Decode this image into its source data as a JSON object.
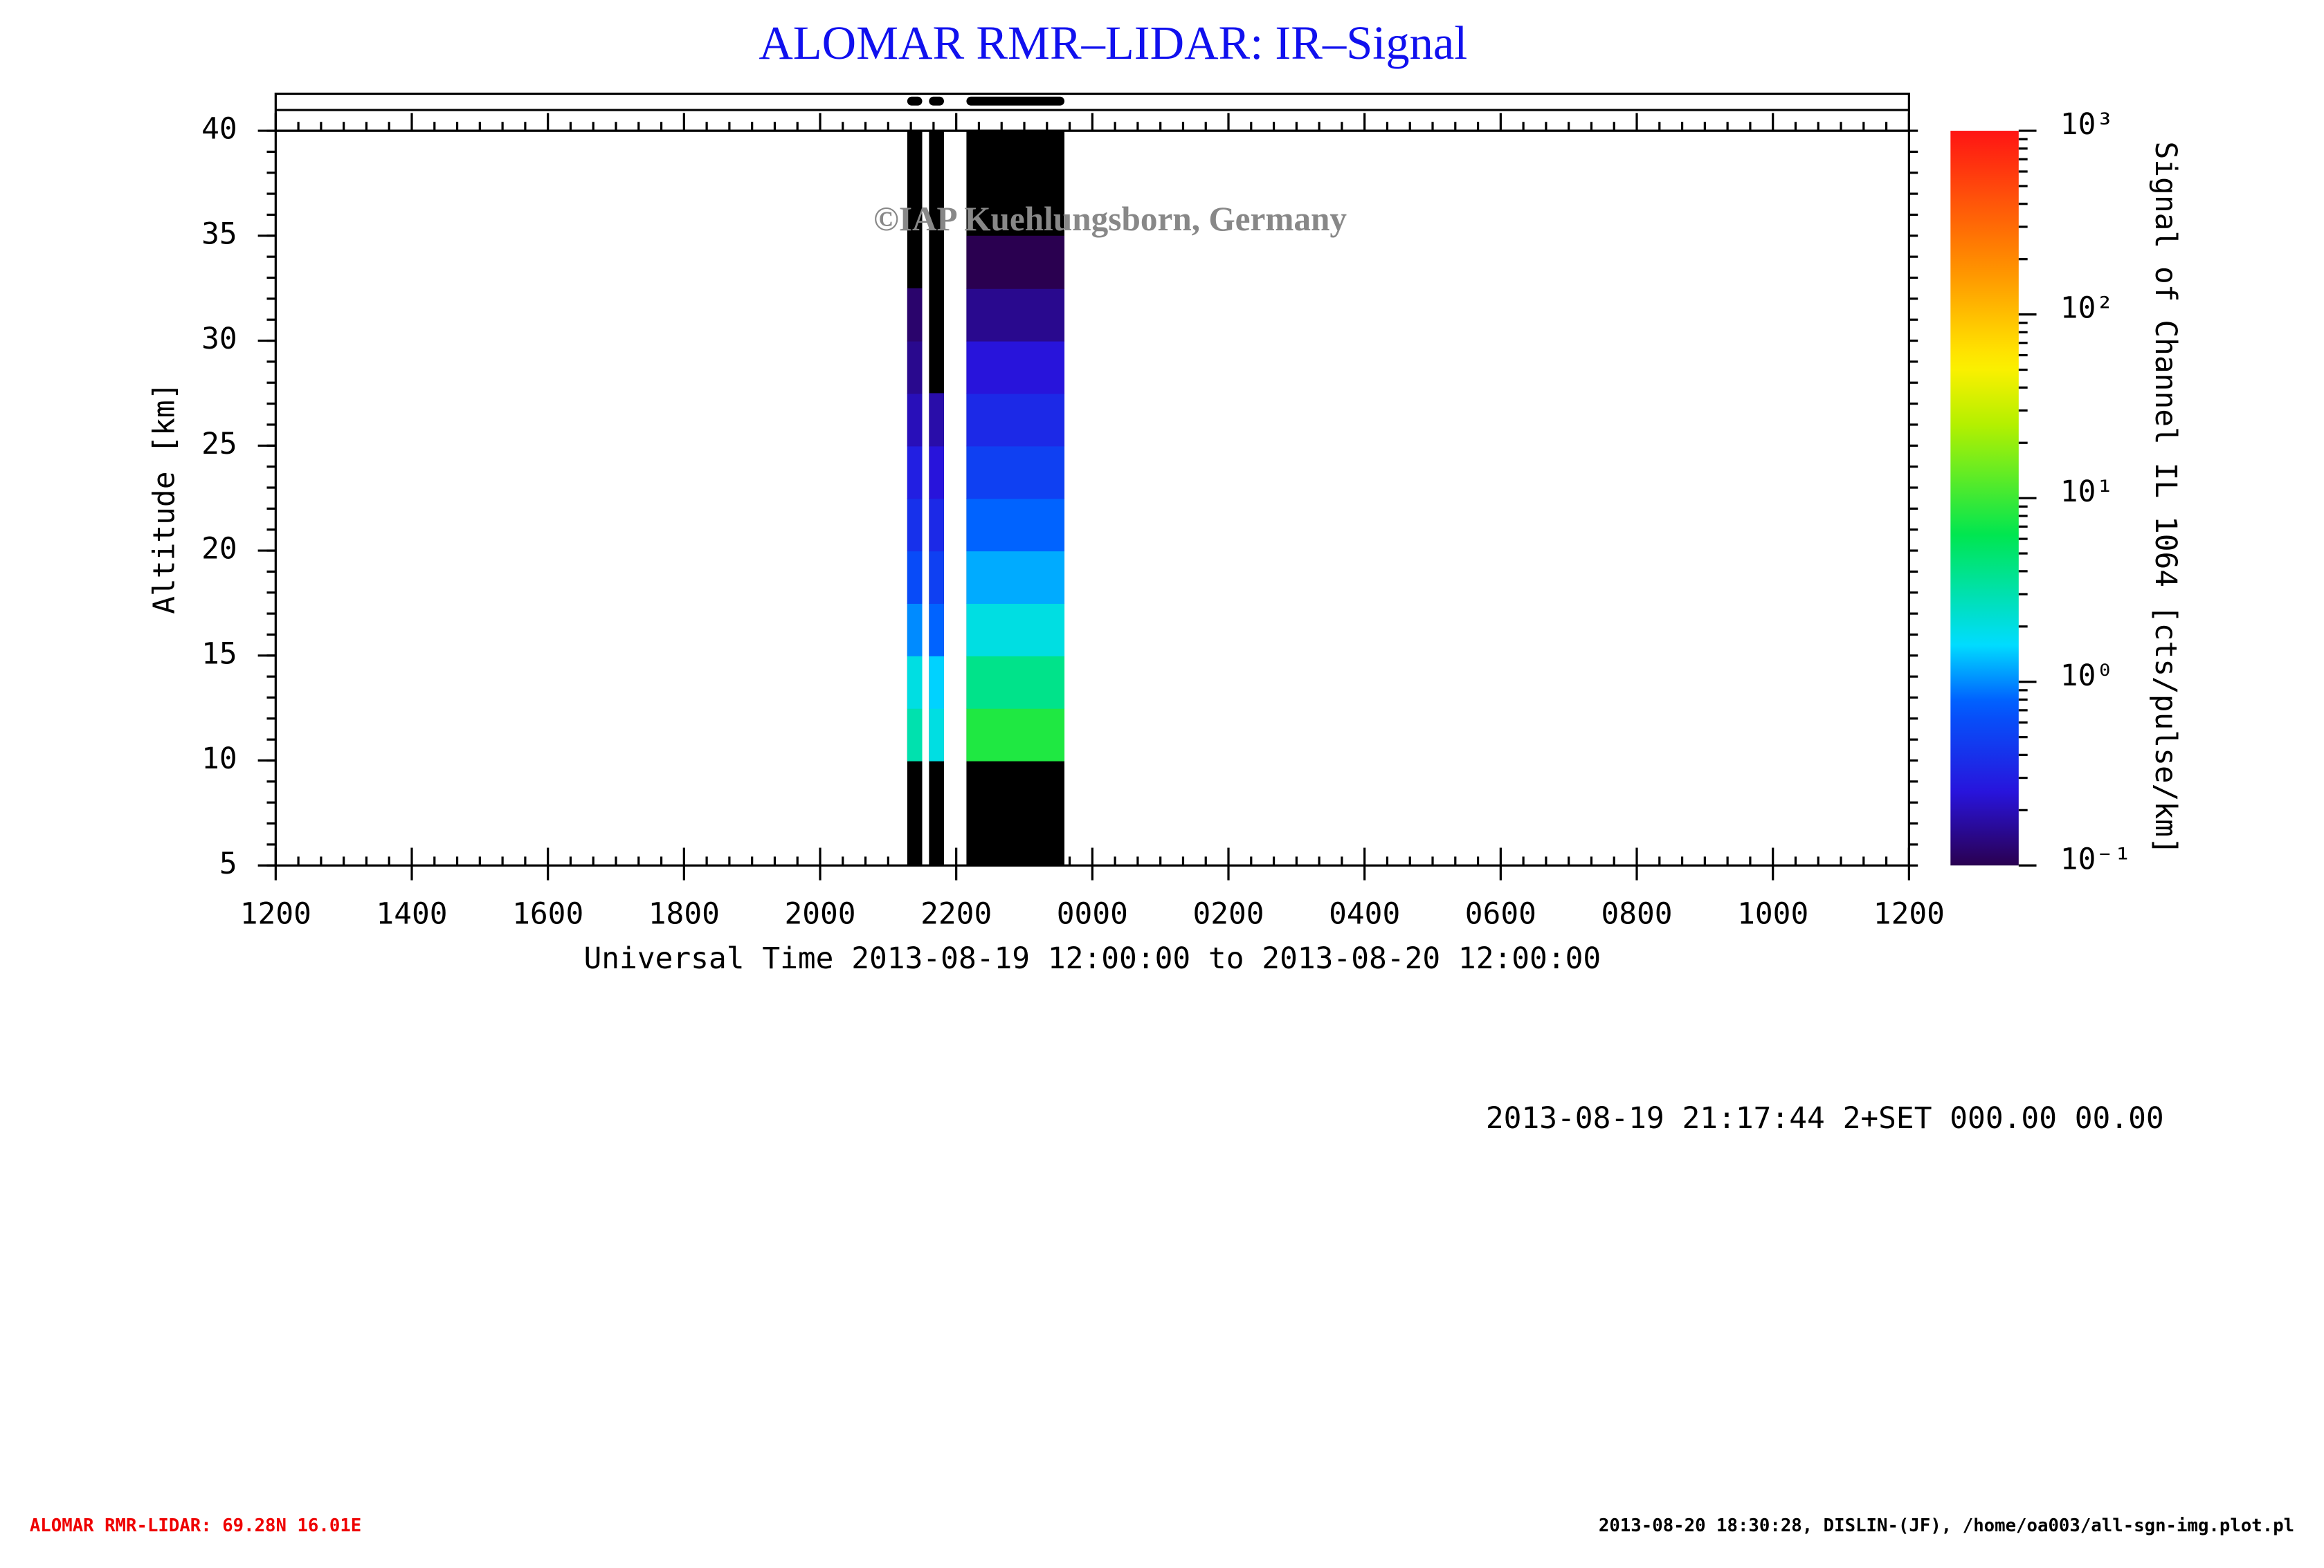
{
  "chart_data": {
    "type": "heatmap",
    "title": "ALOMAR RMR–LIDAR: IR–Signal",
    "x_label": "Universal Time 2013-08-19 12:00:00 to 2013-08-20 12:00:00",
    "y_label": "Altitude [km]",
    "colorbar_label": "Signal of Channel IL 1064 [cts/pulse/km]",
    "watermark": "©IAP Kuehlungsborn, Germany",
    "annotation": "2013-08-19 21:17:44 2+SET 000.00 00.00",
    "footer_left": "ALOMAR RMR-LIDAR: 69.28N 16.01E",
    "footer_right": "2013-08-20 18:30:28, DISLIN-(JF), /home/oa003/all-sgn-img.plot.pl",
    "xlim": [
      0,
      24
    ],
    "xticks": [
      {
        "value": 0,
        "label": "1200"
      },
      {
        "value": 2,
        "label": "1400"
      },
      {
        "value": 4,
        "label": "1600"
      },
      {
        "value": 6,
        "label": "1800"
      },
      {
        "value": 8,
        "label": "2000"
      },
      {
        "value": 10,
        "label": "2200"
      },
      {
        "value": 12,
        "label": "0000"
      },
      {
        "value": 14,
        "label": "0200"
      },
      {
        "value": 16,
        "label": "0400"
      },
      {
        "value": 18,
        "label": "0600"
      },
      {
        "value": 20,
        "label": "0800"
      },
      {
        "value": 22,
        "label": "1000"
      },
      {
        "value": 24,
        "label": "1200"
      }
    ],
    "ylim": [
      5,
      40
    ],
    "yticks": [
      5,
      10,
      15,
      20,
      25,
      30,
      35,
      40
    ],
    "clim": [
      0.1,
      1000
    ],
    "color_scale": "log",
    "cticks": [
      {
        "value": 0.1,
        "label": "10⁻¹"
      },
      {
        "value": 1,
        "label": "10⁰"
      },
      {
        "value": 10,
        "label": "10¹"
      },
      {
        "value": 100,
        "label": "10²"
      },
      {
        "value": 1000,
        "label": "10³"
      }
    ],
    "segments": [
      [
        9.28,
        9.5
      ],
      [
        9.6,
        9.82
      ],
      [
        10.15,
        11.59
      ]
    ],
    "altitude_bins": [
      5,
      7.5,
      10,
      12.5,
      15,
      17.5,
      20,
      22.5,
      25,
      27.5,
      30,
      32.5,
      35,
      37.5,
      40
    ],
    "z": [
      [
        null,
        null,
        3,
        2,
        1,
        0.6,
        0.4,
        0.3,
        0.2,
        0.15,
        0.12,
        null,
        null,
        null
      ],
      [
        null,
        null,
        2,
        1.5,
        0.8,
        0.5,
        0.35,
        0.25,
        0.18,
        null,
        null,
        null,
        null,
        null
      ],
      [
        null,
        null,
        8,
        4,
        2,
        1.2,
        0.8,
        0.5,
        0.35,
        0.25,
        0.15,
        0.1,
        null,
        null
      ]
    ]
  }
}
